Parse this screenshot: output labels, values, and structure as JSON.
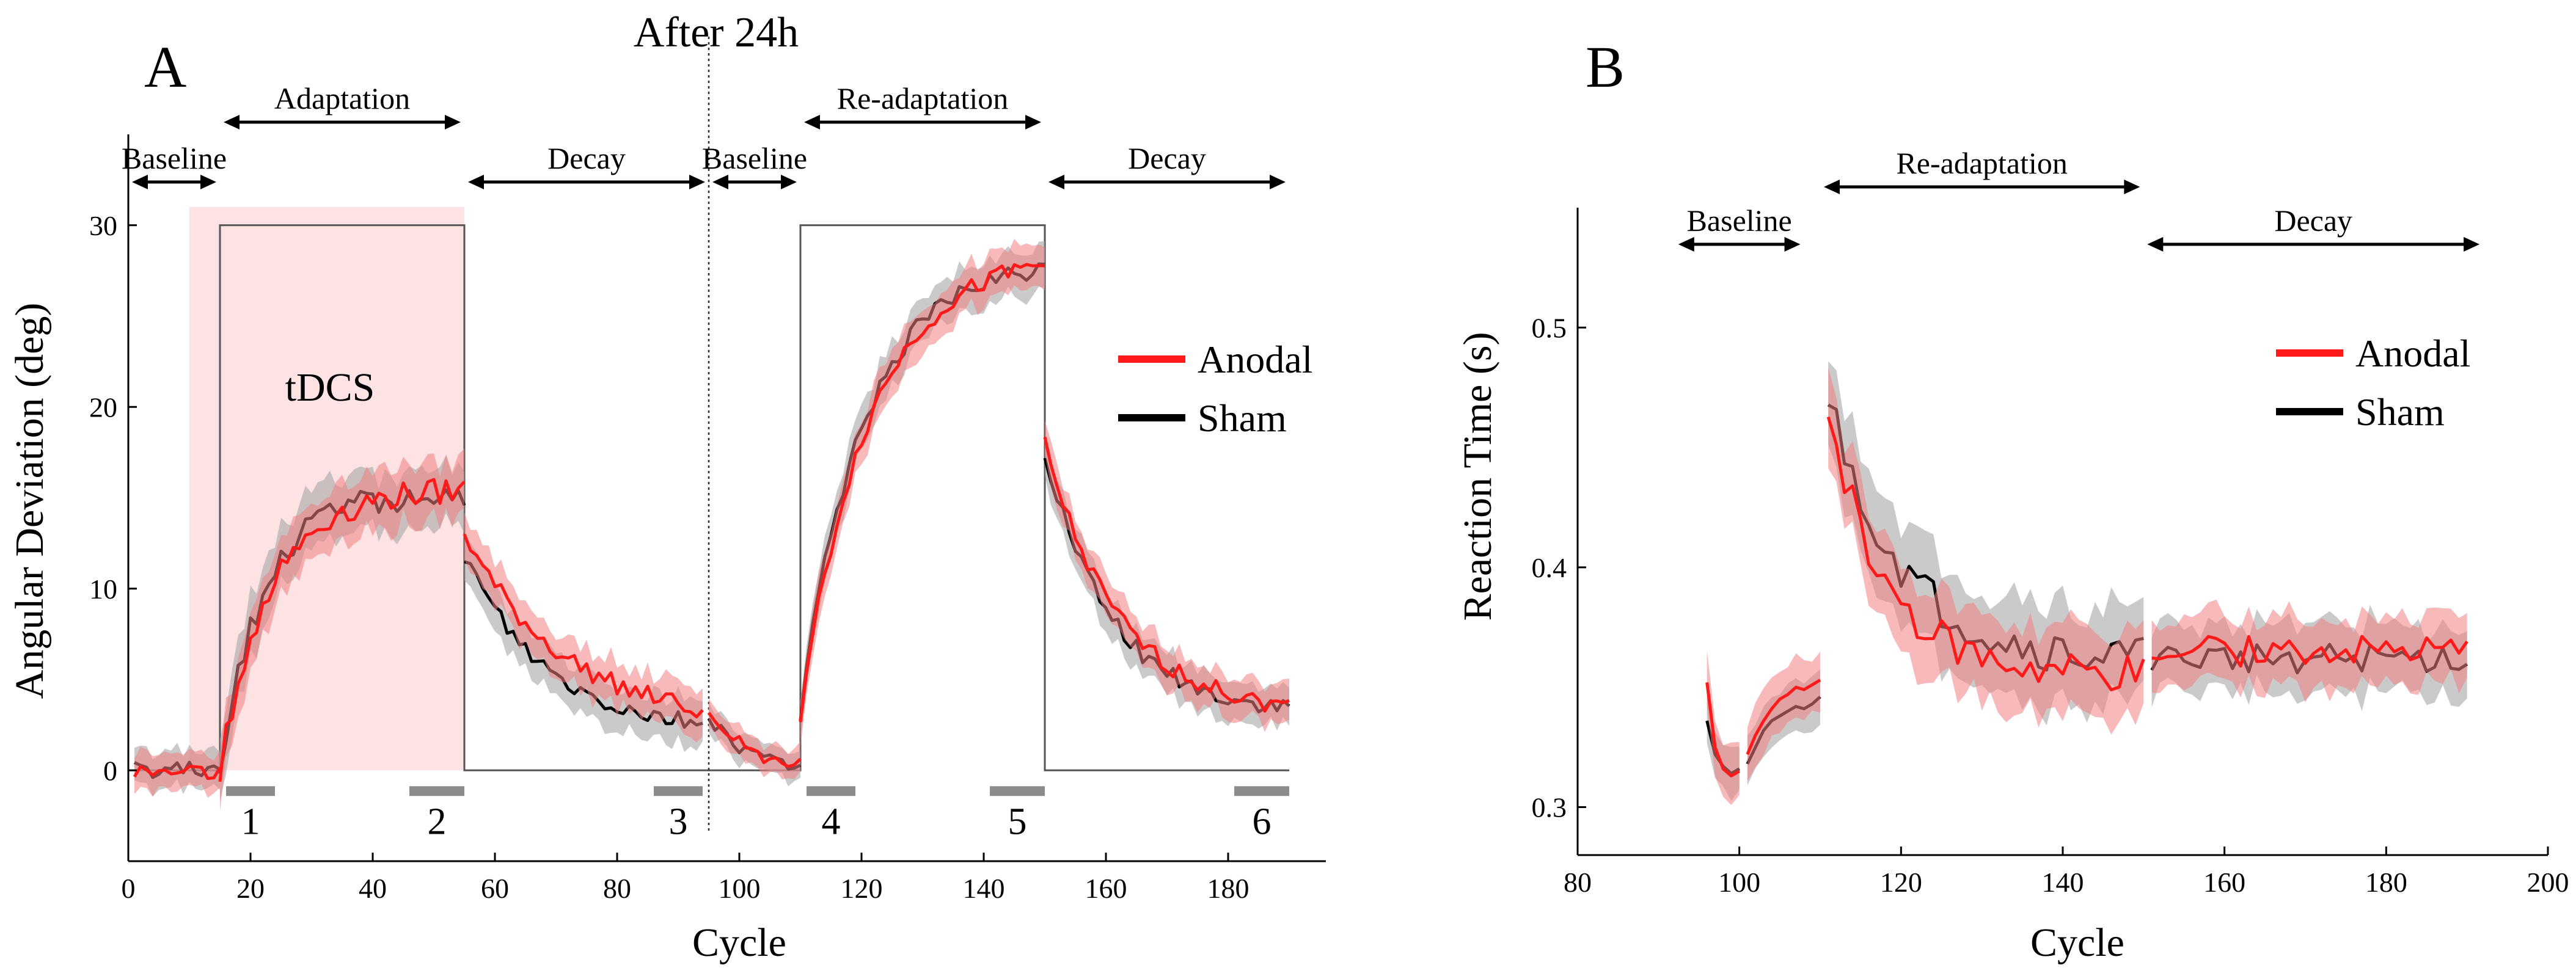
{
  "colors": {
    "anodal": "#ff1a1a",
    "sham": "#000000",
    "anodal_band": "#f08080",
    "sham_band": "#a6a6a6",
    "tdcs_shade": "#fde3e3",
    "marker_bar": "#8c8c8c",
    "schedule_line": "#555555"
  },
  "chart_data": [
    {
      "panel": "A",
      "type": "line",
      "xlabel": "Cycle",
      "ylabel": "Angular Deviation (deg)",
      "xlim": [
        0,
        196
      ],
      "ylim": [
        -5,
        35
      ],
      "xticks": [
        "0",
        "20",
        "40",
        "60",
        "80",
        "100",
        "120",
        "140",
        "160",
        "180"
      ],
      "xtick_values": [
        0,
        20,
        40,
        60,
        80,
        100,
        120,
        140,
        160,
        180
      ],
      "yticks": [
        "0",
        "10",
        "20",
        "30"
      ],
      "ytick_values": [
        0,
        10,
        20,
        30
      ],
      "annotation_top": "After 24h",
      "divider_x": 95,
      "tdcs_label": "tDCS",
      "tdcs_region": [
        10,
        55
      ],
      "phases": [
        {
          "label": "Baseline",
          "start": 0,
          "end": 15
        },
        {
          "label": "Adaptation",
          "start": 15,
          "end": 55
        },
        {
          "label": "Decay",
          "start": 55,
          "end": 95
        },
        {
          "label": "Baseline",
          "start": 95,
          "end": 110
        },
        {
          "label": "Re-adaptation",
          "start": 110,
          "end": 150
        },
        {
          "label": "Decay",
          "start": 150,
          "end": 190
        }
      ],
      "schedule": [
        [
          0,
          0
        ],
        [
          15,
          0
        ],
        [
          15,
          30
        ],
        [
          55,
          30
        ],
        [
          55,
          0
        ],
        [
          94,
          0
        ],
        [
          94,
          0
        ],
        [
          110,
          0
        ],
        [
          110,
          30
        ],
        [
          150,
          30
        ],
        [
          150,
          0
        ],
        [
          190,
          0
        ]
      ],
      "markers": [
        {
          "label": "1",
          "start": 16,
          "end": 24
        },
        {
          "label": "2",
          "start": 46,
          "end": 55
        },
        {
          "label": "3",
          "start": 86,
          "end": 94
        },
        {
          "label": "4",
          "start": 111,
          "end": 119
        },
        {
          "label": "5",
          "start": 141,
          "end": 150
        },
        {
          "label": "6",
          "start": 181,
          "end": 190
        }
      ],
      "legend": [
        "Anodal",
        "Sham"
      ],
      "series": [
        {
          "name": "Anodal",
          "segments": [
            {
              "kind": "flat",
              "start": 1,
              "end": 15,
              "level": 0,
              "band": 1.0
            },
            {
              "kind": "rise",
              "start": 15,
              "end": 55,
              "from": 0,
              "to": 15.5,
              "tau": 8,
              "band": 1.6
            },
            {
              "kind": "decay",
              "start": 55,
              "end": 94,
              "from": 13,
              "to": 2.5,
              "tau": 16,
              "band": 1.2
            },
            {
              "kind": "decay",
              "start": 95,
              "end": 110,
              "from": 3.5,
              "to": 0,
              "tau": 6,
              "band": 0.8
            },
            {
              "kind": "rise",
              "start": 110,
              "end": 150,
              "from": 3,
              "to": 28.5,
              "tau": 11,
              "band": 1.2
            },
            {
              "kind": "decay",
              "start": 150,
              "end": 190,
              "from": 18,
              "to": 3,
              "tau": 12,
              "band": 1.1
            }
          ]
        },
        {
          "name": "Sham",
          "segments": [
            {
              "kind": "flat",
              "start": 1,
              "end": 15,
              "level": 0,
              "band": 1.0
            },
            {
              "kind": "rise",
              "start": 15,
              "end": 55,
              "from": 0,
              "to": 15.2,
              "tau": 7,
              "band": 1.6
            },
            {
              "kind": "decay",
              "start": 55,
              "end": 94,
              "from": 12,
              "to": 2.2,
              "tau": 13,
              "band": 1.2
            },
            {
              "kind": "decay",
              "start": 95,
              "end": 110,
              "from": 3,
              "to": 0,
              "tau": 6,
              "band": 0.8
            },
            {
              "kind": "rise",
              "start": 110,
              "end": 150,
              "from": 3,
              "to": 28,
              "tau": 10,
              "band": 1.2
            },
            {
              "kind": "decay",
              "start": 150,
              "end": 190,
              "from": 17.5,
              "to": 3,
              "tau": 11,
              "band": 1.1
            }
          ]
        }
      ]
    },
    {
      "panel": "B",
      "type": "line",
      "xlabel": "Cycle",
      "ylabel": "Reaction Time (s)",
      "xlim": [
        80,
        200
      ],
      "ylim": [
        0.28,
        0.55
      ],
      "xticks": [
        "80",
        "100",
        "120",
        "140",
        "160",
        "180",
        "200"
      ],
      "xtick_values": [
        80,
        100,
        120,
        140,
        160,
        180,
        200
      ],
      "yticks": [
        "0.3",
        "0.4",
        "0.5"
      ],
      "ytick_values": [
        0.3,
        0.4,
        0.5
      ],
      "phases": [
        {
          "label": "Baseline",
          "start": 92,
          "end": 108
        },
        {
          "label": "Re-adaptation",
          "start": 110,
          "end": 150
        },
        {
          "label": "Decay",
          "start": 150,
          "end": 192
        }
      ],
      "legend": [
        "Anodal",
        "Sham"
      ],
      "series": [
        {
          "name": "Anodal",
          "segments": [
            {
              "kind": "points",
              "start": 96,
              "end": 100,
              "values": [
                0.352,
                0.325,
                0.316,
                0.313,
                0.315
              ],
              "band": 0.012
            },
            {
              "kind": "points",
              "start": 101,
              "end": 110,
              "values": [
                0.322,
                0.33,
                0.336,
                0.341,
                0.345,
                0.347,
                0.35,
                0.349,
                0.351,
                0.353
              ],
              "band": 0.012
            },
            {
              "kind": "decay",
              "start": 111,
              "end": 150,
              "from": 0.465,
              "to": 0.355,
              "tau": 7,
              "band": 0.018
            },
            {
              "kind": "flat",
              "start": 151,
              "end": 190,
              "level": 0.365,
              "band": 0.014
            }
          ]
        },
        {
          "name": "Sham",
          "segments": [
            {
              "kind": "points",
              "start": 96,
              "end": 100,
              "values": [
                0.336,
                0.322,
                0.317,
                0.314,
                0.316
              ],
              "band": 0.01
            },
            {
              "kind": "points",
              "start": 101,
              "end": 110,
              "values": [
                0.318,
                0.325,
                0.332,
                0.336,
                0.338,
                0.34,
                0.342,
                0.341,
                0.343,
                0.346
              ],
              "band": 0.01
            },
            {
              "kind": "decay",
              "start": 111,
              "end": 150,
              "from": 0.47,
              "to": 0.36,
              "tau": 9,
              "band": 0.02
            },
            {
              "kind": "flat",
              "start": 151,
              "end": 190,
              "level": 0.362,
              "band": 0.014
            }
          ]
        }
      ]
    }
  ]
}
